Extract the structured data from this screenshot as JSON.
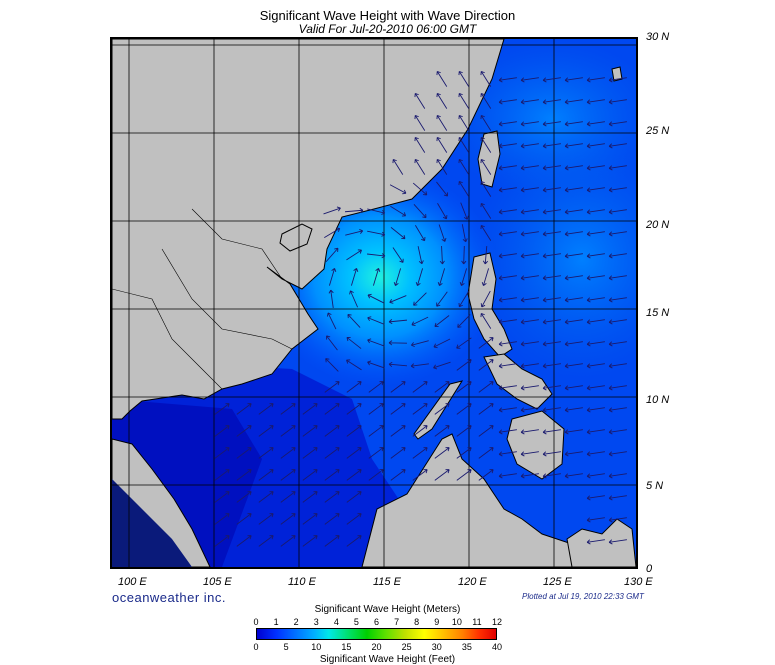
{
  "title": "Significant Wave Height with Wave Direction",
  "subtitle": "Valid For Jul-20-2010 06:00 GMT",
  "lat_labels": [
    "30 N",
    "25 N",
    "20 N",
    "15 N",
    "10 N",
    "5 N",
    "0"
  ],
  "lon_labels": [
    "100 E",
    "105 E",
    "110 E",
    "115 E",
    "120 E",
    "125 E",
    "130 E"
  ],
  "brand": "oceanweather inc.",
  "plotted": "Plotted at Jul 19, 2010 22:33 GMT",
  "colorbar": {
    "title_meters": "Significant Wave Height (Meters)",
    "title_feet": "Significant Wave Height (Feet)",
    "meter_ticks": [
      "0",
      "1",
      "2",
      "3",
      "4",
      "5",
      "6",
      "7",
      "8",
      "9",
      "10",
      "11",
      "12"
    ],
    "feet_ticks": [
      "0",
      "5",
      "10",
      "15",
      "20",
      "25",
      "30",
      "35",
      "40"
    ]
  },
  "colors": {
    "land": "#c0c0c0",
    "ocean_low": "#0000d0",
    "ocean_mid": "#0058ff",
    "peak": "#00e8e8",
    "arrow": "#1a1a6e"
  },
  "map_extent": {
    "lon": [
      99,
      130
    ],
    "lat": [
      0,
      30
    ]
  }
}
